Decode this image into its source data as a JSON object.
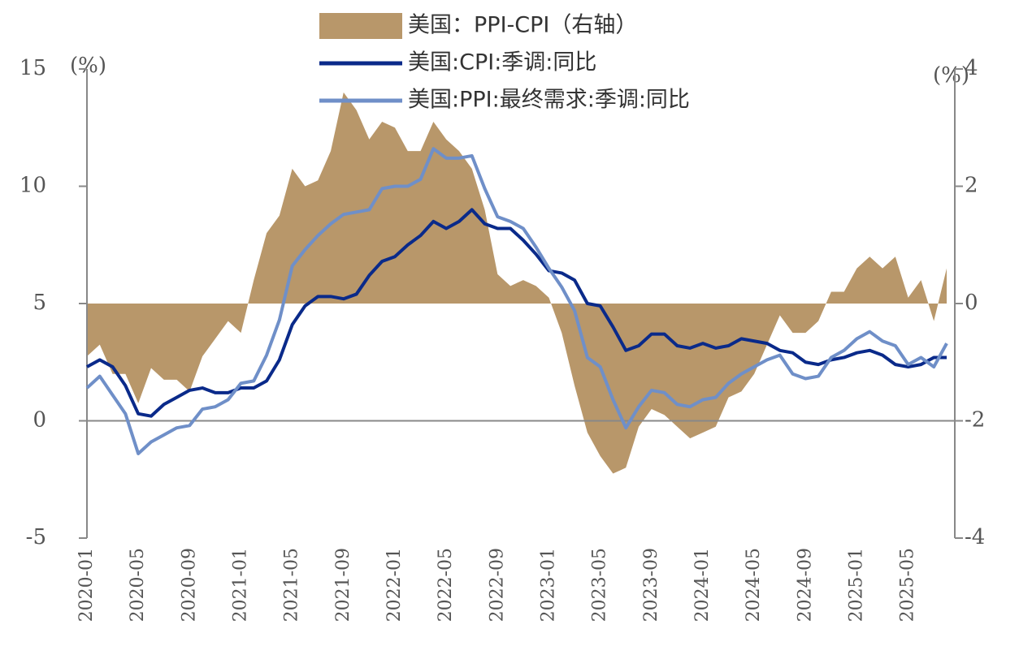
{
  "chart_data": {
    "type": "bar_line",
    "categories": [
      "2020-01",
      null,
      null,
      null,
      "2020-05",
      null,
      null,
      null,
      "2020-09",
      null,
      null,
      null,
      "2021-01",
      null,
      null,
      null,
      "2021-05",
      null,
      null,
      null,
      "2021-09",
      null,
      null,
      null,
      "2022-01",
      null,
      null,
      null,
      "2022-05",
      null,
      null,
      null,
      "2022-09",
      null,
      null,
      null,
      "2023-01",
      null,
      null,
      null,
      "2023-05",
      null,
      null,
      null,
      "2023-09",
      null,
      null,
      null,
      "2024-01",
      null,
      null,
      null,
      "2024-05",
      null,
      null,
      null,
      "2024-09",
      null,
      null,
      null,
      "2025-01",
      null,
      null,
      null,
      "2025-05",
      null,
      null,
      null
    ],
    "series": [
      {
        "name": "美国：PPI-CPI（右轴）",
        "type": "area",
        "axis": "y2",
        "color": "#b8976a",
        "values": [
          -0.9,
          -0.7,
          -1.2,
          -1.2,
          -1.7,
          -1.1,
          -1.3,
          -1.3,
          -1.5,
          -0.9,
          -0.6,
          -0.3,
          -0.5,
          0.4,
          1.2,
          1.5,
          2.3,
          2.0,
          2.1,
          2.6,
          3.6,
          3.3,
          2.8,
          3.1,
          3.0,
          2.6,
          2.6,
          3.1,
          2.8,
          2.6,
          2.3,
          1.6,
          0.5,
          0.3,
          0.4,
          0.3,
          0.1,
          -0.5,
          -1.4,
          -2.2,
          -2.6,
          -2.9,
          -2.8,
          -2.1,
          -1.8,
          -1.9,
          -2.1,
          -2.3,
          -2.2,
          -2.1,
          -1.6,
          -1.5,
          -1.2,
          -0.7,
          -0.2,
          -0.5,
          -0.5,
          -0.3,
          0.2,
          0.2,
          0.6,
          0.8,
          0.6,
          0.8,
          0.1,
          0.4,
          -0.3,
          0.6
        ]
      },
      {
        "name": "美国:CPI:季调:同比",
        "type": "line",
        "color": "#0a2a8a",
        "values": [
          2.3,
          2.6,
          2.3,
          1.5,
          0.3,
          0.2,
          0.7,
          1.0,
          1.3,
          1.4,
          1.2,
          1.2,
          1.4,
          1.4,
          1.7,
          2.6,
          4.1,
          4.9,
          5.3,
          5.3,
          5.2,
          5.4,
          6.2,
          6.8,
          7.0,
          7.5,
          7.9,
          8.5,
          8.2,
          8.5,
          9.0,
          8.4,
          8.2,
          8.2,
          7.7,
          7.1,
          6.4,
          6.3,
          6.0,
          5.0,
          4.9,
          4.0,
          3.0,
          3.2,
          3.7,
          3.7,
          3.2,
          3.1,
          3.3,
          3.1,
          3.2,
          3.5,
          3.4,
          3.3,
          3.0,
          2.9,
          2.5,
          2.4,
          2.6,
          2.7,
          2.9,
          3.0,
          2.8,
          2.4,
          2.3,
          2.4,
          2.7,
          2.7
        ]
      },
      {
        "name": "美国:PPI:最终需求:季调:同比",
        "type": "line",
        "color": "#6f8fc8",
        "values": [
          1.4,
          1.9,
          1.1,
          0.3,
          -1.4,
          -0.9,
          -0.6,
          -0.3,
          -0.2,
          0.5,
          0.6,
          0.9,
          1.6,
          1.7,
          2.8,
          4.3,
          6.6,
          7.3,
          7.9,
          8.4,
          8.8,
          8.9,
          9.0,
          9.9,
          10.0,
          10.0,
          10.3,
          11.6,
          11.2,
          11.2,
          11.3,
          9.9,
          8.7,
          8.5,
          8.2,
          7.4,
          6.5,
          5.7,
          4.7,
          2.7,
          2.3,
          0.9,
          -0.3,
          0.6,
          1.3,
          1.2,
          0.7,
          0.6,
          0.9,
          1.0,
          1.6,
          2.0,
          2.3,
          2.6,
          2.8,
          2.0,
          1.8,
          1.9,
          2.7,
          3.0,
          3.5,
          3.8,
          3.4,
          3.2,
          2.4,
          2.7,
          2.3,
          3.3
        ]
      }
    ],
    "ylabel": "(%)",
    "y2label": "(%)",
    "ylim": [
      -5,
      15
    ],
    "yticks": [
      -5,
      0,
      5,
      10,
      15
    ],
    "y2lim": [
      -4,
      4
    ],
    "y2ticks": [
      -4,
      -2,
      0,
      2,
      4
    ],
    "negative_tick_color": "#e00000",
    "legend": "top"
  }
}
